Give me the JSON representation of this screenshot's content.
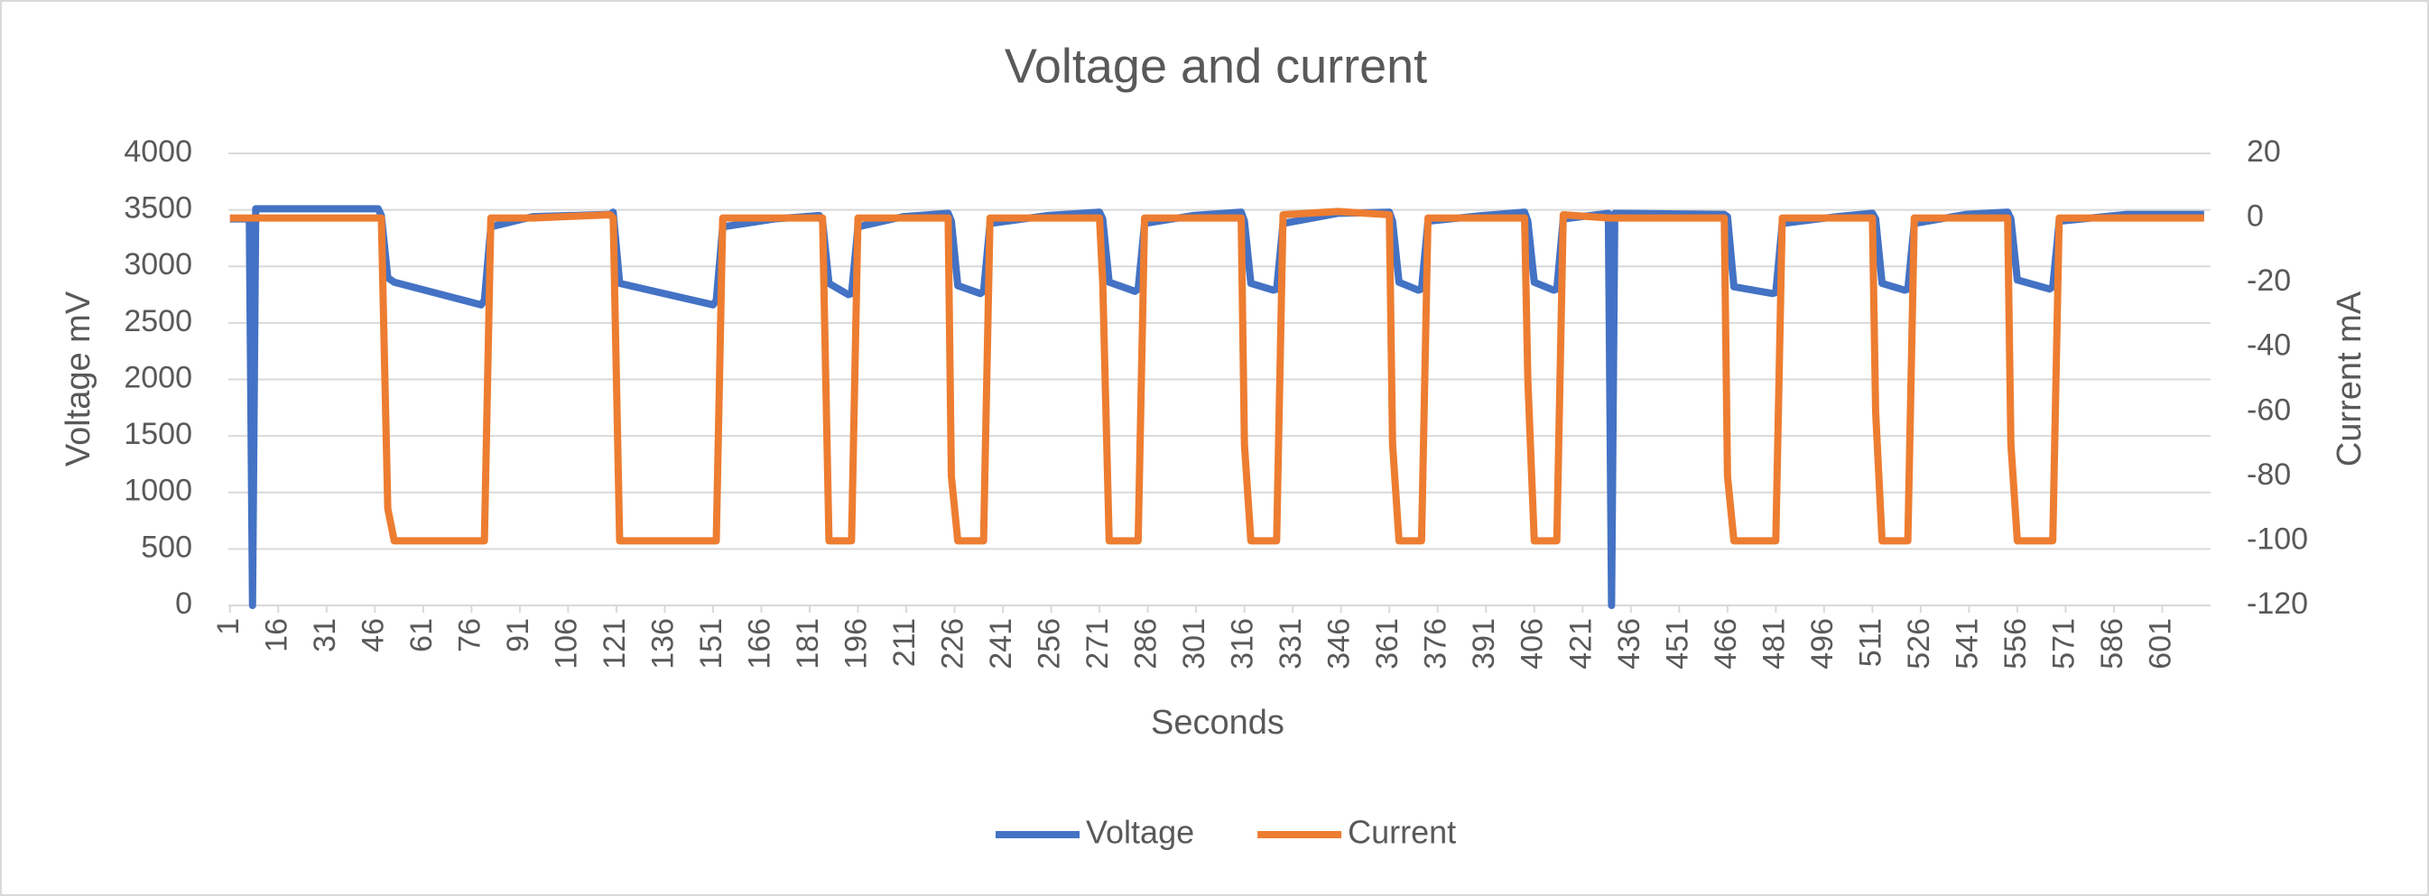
{
  "chart_data": {
    "type": "line",
    "title": "Voltage and current",
    "x_label": "Seconds",
    "y_label": "Voltage mV",
    "y2_label": "Current mA",
    "x": [
      1,
      7,
      8,
      9,
      47,
      48,
      50,
      52,
      79,
      80,
      82,
      95,
      119,
      120,
      122,
      151,
      152,
      154,
      170,
      184,
      185,
      187,
      193,
      194,
      196,
      210,
      224,
      225,
      227,
      234,
      235,
      237,
      255,
      271,
      272,
      274,
      282,
      283,
      285,
      300,
      315,
      316,
      318,
      325,
      326,
      328,
      345,
      361,
      362,
      364,
      370,
      371,
      373,
      390,
      403,
      404,
      406,
      412,
      413,
      415,
      429,
      430,
      431,
      465,
      466,
      468,
      480,
      481,
      483,
      500,
      511,
      512,
      514,
      521,
      522,
      524,
      540,
      553,
      554,
      556,
      566,
      567,
      569,
      590,
      614
    ],
    "series": [
      {
        "name": "Voltage",
        "color": "#4472c4",
        "axis": "y",
        "values": [
          3420,
          3420,
          0,
          3510,
          3510,
          3450,
          2900,
          2860,
          2660,
          2700,
          3350,
          3440,
          3460,
          3480,
          2850,
          2660,
          2700,
          3350,
          3420,
          3450,
          3400,
          2850,
          2750,
          2760,
          3350,
          3440,
          3470,
          3400,
          2830,
          2760,
          2780,
          3380,
          3450,
          3480,
          3420,
          2860,
          2780,
          2800,
          3380,
          3450,
          3480,
          3400,
          2850,
          2790,
          2800,
          3380,
          3470,
          3480,
          3400,
          2860,
          2790,
          2800,
          3400,
          3450,
          3480,
          3400,
          2860,
          2790,
          2800,
          3420,
          3470,
          0,
          3470,
          3460,
          3440,
          2820,
          2760,
          2770,
          3380,
          3440,
          3470,
          3420,
          2850,
          2790,
          2800,
          3380,
          3460,
          3480,
          3420,
          2880,
          2800,
          2820,
          3400,
          3460,
          3460
        ]
      },
      {
        "name": "Current",
        "color": "#ed7d31",
        "axis": "y2",
        "values": [
          0,
          0,
          0,
          0,
          0,
          0,
          -90,
          -100,
          -100,
          -100,
          0,
          0,
          1,
          0,
          -100,
          -100,
          -100,
          0,
          0,
          0,
          0,
          -100,
          -100,
          -100,
          0,
          0,
          0,
          -80,
          -100,
          -100,
          -100,
          0,
          0,
          0,
          -20,
          -100,
          -100,
          -100,
          0,
          0,
          0,
          -70,
          -100,
          -100,
          -100,
          1,
          2,
          1,
          -70,
          -100,
          -100,
          -100,
          0,
          0,
          0,
          -50,
          -100,
          -100,
          -100,
          1,
          0,
          0,
          0,
          0,
          -80,
          -100,
          -100,
          -100,
          0,
          0,
          0,
          -60,
          -100,
          -100,
          -100,
          0,
          0,
          0,
          -70,
          -100,
          -100,
          -100,
          0,
          0,
          0
        ]
      }
    ],
    "xlim": [
      0.5,
      616
    ],
    "xticks": [
      1,
      16,
      31,
      46,
      61,
      76,
      91,
      106,
      121,
      136,
      151,
      166,
      181,
      196,
      211,
      226,
      241,
      256,
      271,
      286,
      301,
      316,
      331,
      346,
      361,
      376,
      391,
      406,
      421,
      436,
      451,
      466,
      481,
      496,
      511,
      526,
      541,
      556,
      571,
      586,
      601
    ],
    "ylim": [
      0,
      4000
    ],
    "yticks": [
      0,
      500,
      1000,
      1500,
      2000,
      2500,
      3000,
      3500,
      4000
    ],
    "y2lim": [
      -120,
      20
    ],
    "y2ticks": [
      -120,
      -100,
      -80,
      -60,
      -40,
      -20,
      0,
      20
    ],
    "grid": true,
    "legend": "bottom"
  }
}
